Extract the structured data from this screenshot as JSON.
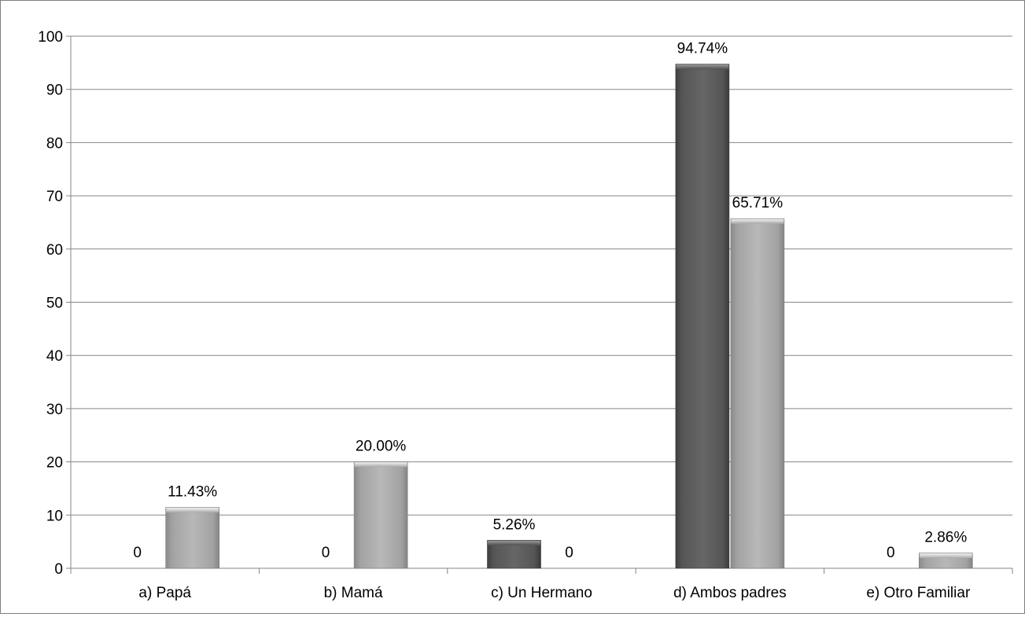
{
  "chart_data": {
    "type": "bar",
    "categories": [
      "a) Papá",
      "b) Mamá",
      "c) Un Hermano",
      "d) Ambos padres",
      "e) Otro Familiar"
    ],
    "series": [
      {
        "values": [
          0,
          0,
          5.26,
          94.74,
          0
        ],
        "labels": [
          "0",
          "0",
          "5.26%",
          "94.74%",
          "0"
        ],
        "color": "#595959"
      },
      {
        "values": [
          11.43,
          20.0,
          0,
          65.71,
          2.86
        ],
        "labels": [
          "11.43%",
          "20.00%",
          "0",
          "65.71%",
          "2.86%"
        ],
        "color": "#a6a6a6"
      }
    ],
    "y_ticks": [
      "0",
      "10",
      "20",
      "30",
      "40",
      "50",
      "60",
      "70",
      "80",
      "90",
      "100"
    ],
    "ylim": [
      0,
      100
    ],
    "grid": true,
    "legend": "none",
    "xlabel": "",
    "ylabel": "",
    "title": ""
  }
}
